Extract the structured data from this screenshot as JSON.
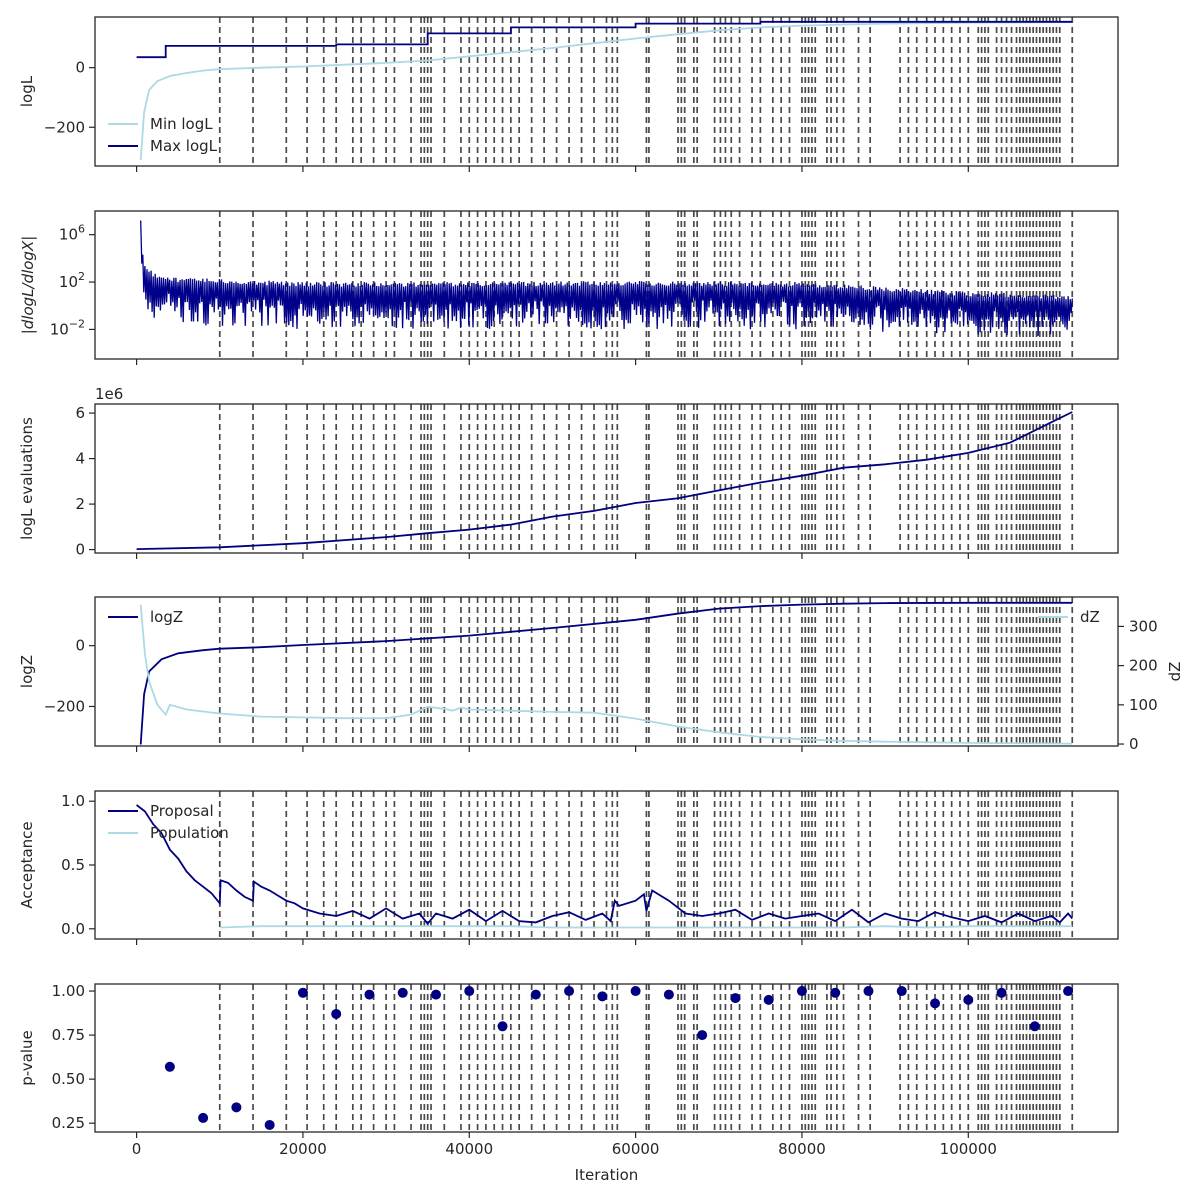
{
  "chart_data": [
    {
      "type": "line",
      "panel": "logL",
      "ylabel": "logL",
      "xlim": [
        -5000,
        118000
      ],
      "ylim": [
        -330,
        170
      ],
      "yticks": [
        0,
        -200
      ],
      "ytick_labels": [
        "0",
        "−200"
      ],
      "legend": {
        "placement": "lower-left",
        "entries": [
          "Min logL",
          "Max logL"
        ]
      },
      "series": [
        {
          "name": "Min logL",
          "color": "#add8e6",
          "x": [
            500,
            900,
            1500,
            2500,
            4000,
            6000,
            8000,
            10000,
            15000,
            20000,
            25000,
            30000,
            35000,
            40000,
            45000,
            50000,
            55000,
            60000,
            65000,
            70000,
            75000,
            80000,
            85000,
            90000,
            100000,
            112500
          ],
          "y": [
            -310,
            -150,
            -75,
            -45,
            -28,
            -18,
            -10,
            -5,
            0,
            4,
            10,
            16,
            24,
            38,
            52,
            66,
            82,
            98,
            112,
            125,
            135,
            141,
            145,
            148,
            151,
            153
          ]
        },
        {
          "name": "Max logL",
          "color": "#000080",
          "x": [
            0,
            3500,
            3500,
            24000,
            24000,
            35000,
            35000,
            45000,
            45000,
            60000,
            60000,
            75000,
            75000,
            112500
          ],
          "y": [
            35,
            35,
            73,
            73,
            78,
            78,
            115,
            115,
            135,
            135,
            148,
            148,
            154,
            154
          ]
        }
      ],
      "vlines": [
        10000,
        14000,
        18000,
        20500,
        22500,
        24000,
        26000,
        27000,
        28500,
        30000,
        31000,
        33000,
        34200,
        34600,
        35000,
        35400,
        37000,
        39000,
        40000,
        41000,
        42000,
        43000,
        44000,
        45000,
        46000,
        47500,
        49000,
        50500,
        52000,
        53500,
        55000,
        56500,
        57200,
        57800,
        61300,
        61600,
        65100,
        65500,
        65900,
        67000,
        67400,
        69500,
        70200,
        70800,
        71500,
        72500,
        74000,
        75000,
        76500,
        77500,
        78500,
        80000,
        80400,
        80800,
        81200,
        81600,
        83000,
        83500,
        84200,
        85000,
        86800,
        88200,
        91800,
        92800,
        93800,
        95000,
        96000,
        97000,
        98000,
        99000,
        100000,
        101200,
        101600,
        102000,
        102400,
        103400,
        104000,
        104600,
        105200,
        105800,
        106200,
        106600,
        107000,
        107400,
        107800,
        108200,
        108600,
        109000,
        109400,
        109800,
        110200,
        110600,
        111000,
        112500
      ]
    },
    {
      "type": "line",
      "panel": "dlogL",
      "ylabel": "|dlogL/dlogX|",
      "yscale": "log",
      "xlim": [
        -5000,
        118000
      ],
      "ylim": [
        -4.5,
        8
      ],
      "yticks": [
        6,
        2,
        -2
      ],
      "ytick_labels": [
        "10^6",
        "10^2",
        "10^-2"
      ],
      "series": [
        {
          "name": "",
          "color": "#00008b",
          "x": [
            500,
            700,
            1000,
            2000,
            5000,
            10000,
            20000,
            40000,
            60000,
            80000,
            100000,
            112500
          ],
          "y": [
            7.2,
            3.5,
            3.0,
            2.5,
            2.0,
            1.8,
            1.6,
            1.5,
            1.5,
            1.4,
            0.6,
            0.4
          ],
          "spread_low": [
            3,
            0,
            -0.5,
            -1,
            -1.5,
            -1.8,
            -2,
            -2,
            -2,
            -2,
            -2.5,
            -2.8
          ],
          "spread_high": [
            7.2,
            4.5,
            3.5,
            2.8,
            2.4,
            2.3,
            2.0,
            2.0,
            2.1,
            2.0,
            1.2,
            0.9
          ]
        }
      ]
    },
    {
      "type": "line",
      "panel": "evaluations",
      "ylabel": "logL evaluations",
      "offset_text": "1e6",
      "xlim": [
        -5000,
        118000
      ],
      "ylim": [
        -0.15,
        6.4
      ],
      "yticks": [
        6,
        4,
        2,
        0
      ],
      "ytick_labels": [
        "6",
        "4",
        "2",
        "0"
      ],
      "series": [
        {
          "name": "",
          "color": "#000080",
          "x": [
            0,
            10000,
            20000,
            30000,
            35000,
            40000,
            45000,
            50000,
            55000,
            60000,
            65000,
            70000,
            75000,
            80000,
            85000,
            90000,
            95000,
            100000,
            105000,
            110000,
            112500
          ],
          "y": [
            0.02,
            0.1,
            0.28,
            0.55,
            0.72,
            0.88,
            1.1,
            1.45,
            1.7,
            2.05,
            2.25,
            2.6,
            2.95,
            3.25,
            3.6,
            3.75,
            3.95,
            4.25,
            4.7,
            5.6,
            6.05
          ]
        }
      ]
    },
    {
      "type": "line",
      "panel": "logZ",
      "ylabel": "logZ",
      "y2label": "dZ",
      "xlim": [
        -5000,
        118000
      ],
      "ylim": [
        -330,
        160
      ],
      "yticks": [
        0,
        -200
      ],
      "ytick_labels": [
        "0",
        "−200"
      ],
      "y2lim": [
        -5,
        375
      ],
      "y2ticks": [
        300,
        200,
        100,
        0
      ],
      "legend": {
        "placement": "upper-left",
        "entries": [
          "logZ"
        ]
      },
      "legend2": {
        "placement": "upper-right",
        "entries": [
          "dZ"
        ]
      },
      "series": [
        {
          "name": "logZ",
          "color": "#000080",
          "axis": "left",
          "x": [
            500,
            900,
            1500,
            3000,
            5000,
            8000,
            10000,
            15000,
            20000,
            30000,
            40000,
            50000,
            60000,
            65000,
            70000,
            75000,
            80000,
            85000,
            90000,
            100000,
            112500
          ],
          "y": [
            -325,
            -160,
            -85,
            -45,
            -25,
            -15,
            -10,
            -5,
            2,
            15,
            33,
            58,
            85,
            105,
            122,
            130,
            135,
            138,
            140,
            141,
            141
          ]
        },
        {
          "name": "dZ",
          "color": "#add8e6",
          "axis": "right",
          "x": [
            500,
            1000,
            1500,
            2500,
            3500,
            4000,
            6000,
            10000,
            15000,
            20000,
            25000,
            30000,
            33000,
            35000,
            37000,
            38000,
            39000,
            40000,
            45000,
            50000,
            55000,
            60000,
            65000,
            70000,
            75000,
            80000,
            85000,
            90000,
            100000,
            112500
          ],
          "y": [
            355,
            230,
            160,
            100,
            75,
            100,
            88,
            78,
            70,
            68,
            66,
            66,
            75,
            95,
            90,
            85,
            93,
            88,
            85,
            82,
            80,
            65,
            45,
            30,
            18,
            12,
            8,
            6,
            3,
            1
          ]
        }
      ]
    },
    {
      "type": "line",
      "panel": "acceptance",
      "ylabel": "Acceptance",
      "xlim": [
        -5000,
        118000
      ],
      "ylim": [
        -0.08,
        1.08
      ],
      "yticks": [
        1.0,
        0.5,
        0.0
      ],
      "ytick_labels": [
        "1.0",
        "0.5",
        "0.0"
      ],
      "legend": {
        "placement": "upper-left",
        "entries": [
          "Proposal",
          "Population"
        ]
      },
      "series": [
        {
          "name": "Proposal",
          "color": "#000080",
          "x": [
            0,
            1000,
            2000,
            3000,
            4000,
            5000,
            6000,
            7000,
            8000,
            9000,
            10000,
            10100,
            11000,
            12000,
            13000,
            14000,
            14100,
            15000,
            16000,
            17000,
            18000,
            19000,
            20000,
            22000,
            24000,
            26000,
            28000,
            30000,
            32000,
            34000,
            35000,
            36000,
            38000,
            40000,
            42000,
            44000,
            46000,
            48000,
            50000,
            52000,
            54000,
            56000,
            57000,
            57500,
            58000,
            60000,
            61000,
            61300,
            62000,
            64000,
            66000,
            68000,
            70000,
            72000,
            74000,
            76000,
            78000,
            80000,
            82000,
            84000,
            86000,
            88000,
            90000,
            92000,
            94000,
            96000,
            98000,
            100000,
            102000,
            104000,
            106000,
            108000,
            110000,
            111000,
            112000,
            112500
          ],
          "y": [
            0.97,
            0.92,
            0.82,
            0.75,
            0.62,
            0.55,
            0.45,
            0.38,
            0.33,
            0.28,
            0.2,
            0.38,
            0.36,
            0.3,
            0.25,
            0.22,
            0.37,
            0.33,
            0.3,
            0.26,
            0.22,
            0.2,
            0.16,
            0.12,
            0.1,
            0.14,
            0.08,
            0.16,
            0.08,
            0.12,
            0.04,
            0.12,
            0.08,
            0.15,
            0.06,
            0.14,
            0.06,
            0.05,
            0.1,
            0.13,
            0.07,
            0.12,
            0.06,
            0.22,
            0.18,
            0.22,
            0.27,
            0.14,
            0.3,
            0.22,
            0.12,
            0.1,
            0.12,
            0.15,
            0.07,
            0.12,
            0.08,
            0.1,
            0.12,
            0.06,
            0.15,
            0.05,
            0.12,
            0.08,
            0.06,
            0.13,
            0.09,
            0.06,
            0.1,
            0.05,
            0.12,
            0.06,
            0.1,
            0.05,
            0.12,
            0.08
          ]
        },
        {
          "name": "Population",
          "color": "#add8e6",
          "x": [
            10000,
            15000,
            20000,
            25000,
            30000,
            35000,
            40000,
            45000,
            50000,
            55000,
            60000,
            65000,
            70000,
            75000,
            80000,
            85000,
            90000,
            95000,
            100000,
            105000,
            112500
          ],
          "y": [
            0.01,
            0.02,
            0.02,
            0.02,
            0.02,
            0.02,
            0.02,
            0.02,
            0.01,
            0.01,
            0.01,
            0.01,
            0.01,
            0.01,
            0.01,
            0.01,
            0.02,
            0.01,
            0.02,
            0.02,
            0.02
          ]
        }
      ]
    },
    {
      "type": "scatter",
      "panel": "p-value",
      "ylabel": "p-value",
      "xlabel": "Iteration",
      "xlim": [
        -5000,
        118000
      ],
      "ylim": [
        0.2,
        1.04
      ],
      "yticks": [
        1.0,
        0.75,
        0.5,
        0.25
      ],
      "ytick_labels": [
        "1.00",
        "0.75",
        "0.50",
        "0.25"
      ],
      "xticks": [
        0,
        20000,
        40000,
        60000,
        80000,
        100000
      ],
      "xtick_labels": [
        "0",
        "20000",
        "40000",
        "60000",
        "80000",
        "100000"
      ],
      "series": [
        {
          "name": "",
          "color": "#000080",
          "x": [
            4000,
            8000,
            12000,
            16000,
            20000,
            24000,
            28000,
            32000,
            36000,
            40000,
            44000,
            48000,
            52000,
            56000,
            60000,
            64000,
            68000,
            72000,
            76000,
            80000,
            84000,
            88000,
            92000,
            96000,
            100000,
            104000,
            108000,
            112000
          ],
          "y": [
            0.57,
            0.28,
            0.34,
            0.24,
            0.99,
            0.87,
            0.98,
            0.99,
            0.98,
            1.0,
            0.8,
            0.98,
            1.0,
            0.97,
            1.0,
            0.98,
            0.75,
            0.96,
            0.95,
            1.0,
            0.99,
            1.0,
            1.0,
            0.93,
            0.95,
            0.99,
            0.8,
            1.0
          ]
        }
      ]
    }
  ]
}
